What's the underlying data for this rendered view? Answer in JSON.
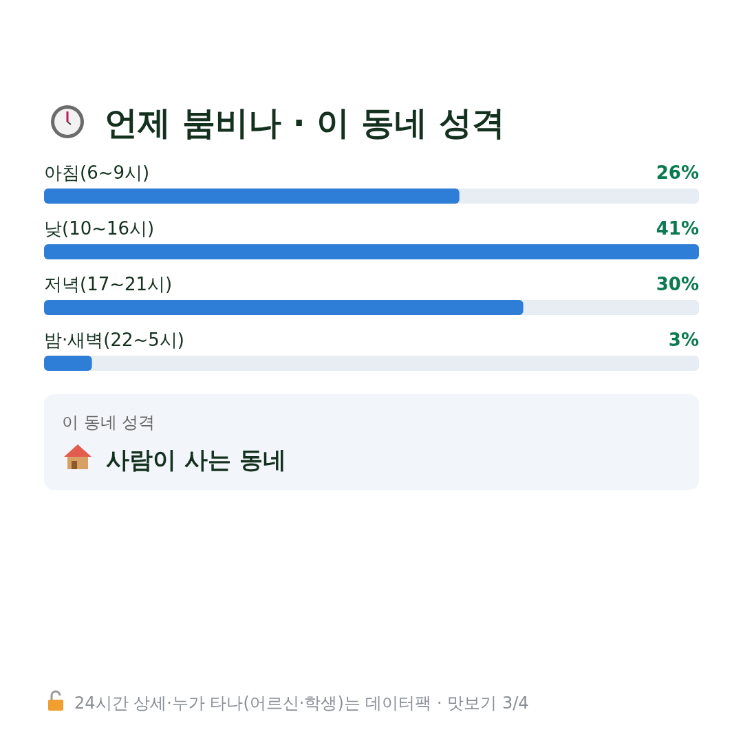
{
  "chart_data": {
    "type": "bar",
    "orientation": "horizontal",
    "title": "언제 붐비나 · 이 동네 성격",
    "categories": [
      "아침(6~9시)",
      "낮(10~16시)",
      "저녁(17~21시)",
      "밤·새벽(22~5시)"
    ],
    "values": [
      26,
      41,
      30,
      3
    ],
    "value_labels": [
      "26%",
      "41%",
      "30%",
      "3%"
    ],
    "color": "#2e7dd6",
    "annotations": [
      "이 동네 성격",
      "사람이 사는 동네",
      "24시간 상세·누가 타나(어르신·학생)는 데이터팩 · 맛보기 3/4"
    ]
  }
}
